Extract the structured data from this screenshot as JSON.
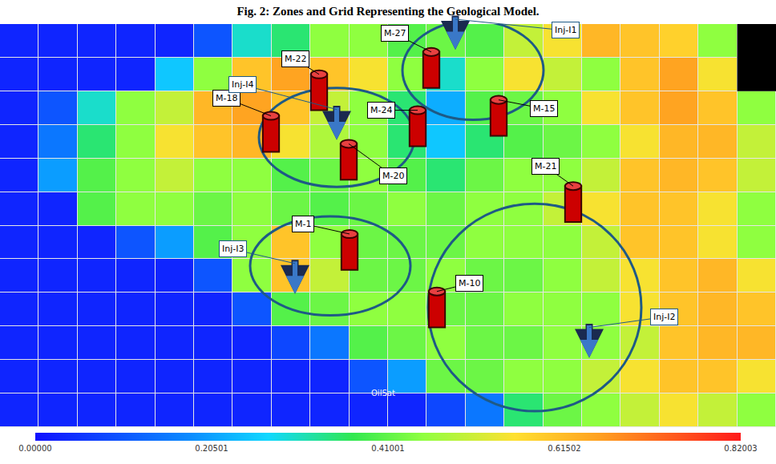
{
  "chart_data": {
    "type": "heatmap",
    "title": "Fig. 2: Zones and Grid Representing the Geological Model.",
    "tick_labels": false,
    "cells": [
      [
        0.03,
        0.03,
        0.03,
        0.03,
        0.03,
        0.1,
        0.3,
        0.35,
        0.45,
        0.45,
        0.4,
        0.42,
        0.4,
        0.5,
        0.55,
        0.62,
        0.6,
        0.58,
        0.45,
        null
      ],
      [
        0.03,
        0.03,
        0.03,
        0.03,
        0.25,
        0.45,
        0.6,
        0.65,
        0.6,
        0.55,
        0.45,
        0.3,
        0.45,
        0.55,
        0.5,
        0.45,
        0.6,
        0.65,
        0.55,
        null
      ],
      [
        0.03,
        0.1,
        0.3,
        0.45,
        0.5,
        0.62,
        0.65,
        0.6,
        0.5,
        0.45,
        0.35,
        0.22,
        0.4,
        0.42,
        0.45,
        0.55,
        0.6,
        0.65,
        0.6,
        0.45
      ],
      [
        0.03,
        0.15,
        0.35,
        0.45,
        0.55,
        0.6,
        0.62,
        0.55,
        0.48,
        0.45,
        0.35,
        0.25,
        0.35,
        0.4,
        0.42,
        0.45,
        0.55,
        0.62,
        0.62,
        0.5
      ],
      [
        0.03,
        0.2,
        0.4,
        0.45,
        0.5,
        0.45,
        0.45,
        0.4,
        0.42,
        0.45,
        0.4,
        0.35,
        0.42,
        0.45,
        0.45,
        0.5,
        0.6,
        0.62,
        0.6,
        0.5
      ],
      [
        0.03,
        0.03,
        0.4,
        0.45,
        0.45,
        0.42,
        0.45,
        0.42,
        0.4,
        0.42,
        0.45,
        0.42,
        0.45,
        0.45,
        0.5,
        0.55,
        0.6,
        0.6,
        0.55,
        0.45
      ],
      [
        0.03,
        0.03,
        0.03,
        0.1,
        0.2,
        0.4,
        0.45,
        0.6,
        0.45,
        0.42,
        0.42,
        0.42,
        0.45,
        0.45,
        0.45,
        0.5,
        0.6,
        0.6,
        0.55,
        0.45
      ],
      [
        0.03,
        0.03,
        0.03,
        0.03,
        0.03,
        0.1,
        0.45,
        0.6,
        0.5,
        0.42,
        0.42,
        0.45,
        0.42,
        0.42,
        0.45,
        0.5,
        0.55,
        0.6,
        0.62,
        0.55
      ],
      [
        0.03,
        0.03,
        0.03,
        0.03,
        0.03,
        0.03,
        0.1,
        0.4,
        0.42,
        0.45,
        0.45,
        0.42,
        0.42,
        0.45,
        0.45,
        0.45,
        0.55,
        0.6,
        0.62,
        0.6
      ],
      [
        0.03,
        0.03,
        0.03,
        0.03,
        0.03,
        0.03,
        0.03,
        0.08,
        0.15,
        0.4,
        0.42,
        0.45,
        0.42,
        0.42,
        0.45,
        0.45,
        0.5,
        0.6,
        0.62,
        0.62
      ],
      [
        0.03,
        0.03,
        0.03,
        0.03,
        0.03,
        0.03,
        0.03,
        0.03,
        0.03,
        0.1,
        0.2,
        0.42,
        0.42,
        0.45,
        0.45,
        0.5,
        0.55,
        0.6,
        0.6,
        0.55
      ],
      [
        0.03,
        0.03,
        0.03,
        0.03,
        0.03,
        0.03,
        0.03,
        0.03,
        0.03,
        0.03,
        0.03,
        0.08,
        0.15,
        0.35,
        0.42,
        0.45,
        0.5,
        0.55,
        0.5,
        0.45
      ]
    ],
    "colorbar": {
      "range": [
        0,
        0.82003
      ],
      "ticks": [
        {
          "value": 0,
          "label": "0.00000"
        },
        {
          "value": 0.20501,
          "label": "0.20501"
        },
        {
          "value": 0.41001,
          "label": "0.41001"
        },
        {
          "value": 0.61502,
          "label": "0.61502"
        },
        {
          "value": 0.82003,
          "label": "0.82003"
        }
      ]
    },
    "producers": [
      "M-27",
      "M-22",
      "M-18",
      "M-24",
      "M-15",
      "M-20",
      "M-21",
      "M-1",
      "M-10"
    ],
    "injectors": [
      "Inj-I1",
      "Inj-I4",
      "Inj-I3",
      "Inj-I2"
    ],
    "labels": [
      "OilSat"
    ]
  }
}
